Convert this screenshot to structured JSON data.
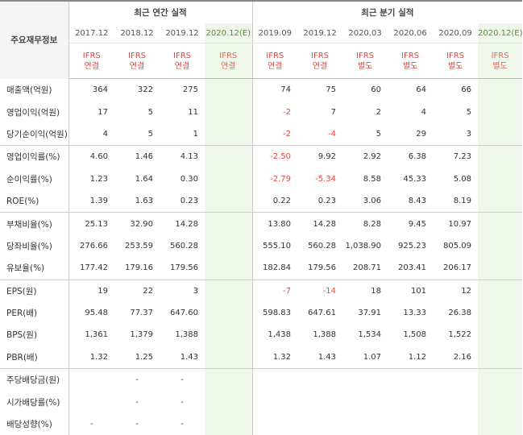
{
  "header": {
    "label_title": "주요재무정보",
    "annual_title": "최근 연간 실적",
    "quarterly_title": "최근 분기 실적"
  },
  "periods": [
    {
      "label": "2017.12",
      "type_line1": "IFRS",
      "type_line2": "연결",
      "estimate": false
    },
    {
      "label": "2018.12",
      "type_line1": "IFRS",
      "type_line2": "연결",
      "estimate": false
    },
    {
      "label": "2019.12",
      "type_line1": "IFRS",
      "type_line2": "연결",
      "estimate": false
    },
    {
      "label": "2020.12(E)",
      "type_line1": "IFRS",
      "type_line2": "연결",
      "estimate": true
    },
    {
      "label": "2019.09",
      "type_line1": "IFRS",
      "type_line2": "연결",
      "estimate": false
    },
    {
      "label": "2019.12",
      "type_line1": "IFRS",
      "type_line2": "연결",
      "estimate": false
    },
    {
      "label": "2020.03",
      "type_line1": "IFRS",
      "type_line2": "별도",
      "estimate": false
    },
    {
      "label": "2020.06",
      "type_line1": "IFRS",
      "type_line2": "별도",
      "estimate": false
    },
    {
      "label": "2020.09",
      "type_line1": "IFRS",
      "type_line2": "별도",
      "estimate": false
    },
    {
      "label": "2020.12(E)",
      "type_line1": "IFRS",
      "type_line2": "별도",
      "estimate": true
    }
  ],
  "rows": [
    {
      "label": "매출액(억원)",
      "values": [
        "364",
        "322",
        "275",
        "",
        "74",
        "75",
        "60",
        "64",
        "66",
        ""
      ]
    },
    {
      "label": "영업이익(억원)",
      "values": [
        "17",
        "5",
        "11",
        "",
        "-2",
        "7",
        "2",
        "4",
        "5",
        ""
      ]
    },
    {
      "label": "당기순이익(억원)",
      "values": [
        "4",
        "5",
        "1",
        "",
        "-2",
        "-4",
        "5",
        "29",
        "3",
        ""
      ],
      "group_end": true
    },
    {
      "label": "영업이익률(%)",
      "values": [
        "4.60",
        "1.46",
        "4.13",
        "",
        "-2.50",
        "9.92",
        "2.92",
        "6.38",
        "7.23",
        ""
      ]
    },
    {
      "label": "순이익률(%)",
      "values": [
        "1.23",
        "1.64",
        "0.30",
        "",
        "-2.79",
        "-5.34",
        "8.58",
        "45.33",
        "5.08",
        ""
      ]
    },
    {
      "label": "ROE(%)",
      "values": [
        "1.39",
        "1.63",
        "0.23",
        "",
        "0.22",
        "0.23",
        "3.06",
        "8.43",
        "8.19",
        ""
      ],
      "group_end": true
    },
    {
      "label": "부채비율(%)",
      "values": [
        "25.13",
        "32.90",
        "14.28",
        "",
        "13.80",
        "14.28",
        "8.28",
        "9.45",
        "10.97",
        ""
      ]
    },
    {
      "label": "당좌비율(%)",
      "values": [
        "276.66",
        "253.59",
        "560.28",
        "",
        "555.10",
        "560.28",
        "1,038.90",
        "925.23",
        "805.09",
        ""
      ]
    },
    {
      "label": "유보율(%)",
      "values": [
        "177.42",
        "179.16",
        "179.56",
        "",
        "182.84",
        "179.56",
        "208.71",
        "203.41",
        "206.17",
        ""
      ],
      "group_end": true
    },
    {
      "label": "EPS(원)",
      "values": [
        "19",
        "22",
        "3",
        "",
        "-7",
        "-14",
        "18",
        "101",
        "12",
        ""
      ]
    },
    {
      "label": "PER(배)",
      "values": [
        "95.48",
        "77.37",
        "647.60",
        "",
        "598.83",
        "647.61",
        "37.91",
        "13.33",
        "26.38",
        ""
      ]
    },
    {
      "label": "BPS(원)",
      "values": [
        "1,361",
        "1,379",
        "1,388",
        "",
        "1,438",
        "1,388",
        "1,534",
        "1,508",
        "1,522",
        ""
      ]
    },
    {
      "label": "PBR(배)",
      "values": [
        "1.32",
        "1.25",
        "1.43",
        "",
        "1.32",
        "1.43",
        "1.07",
        "1.12",
        "2.16",
        ""
      ],
      "group_end": true
    },
    {
      "label": "주당배당금(원)",
      "values": [
        "",
        "-",
        "-",
        "",
        "",
        "",
        "",
        "",
        "",
        ""
      ]
    },
    {
      "label": "시가배당률(%)",
      "values": [
        "",
        "-",
        "-",
        "",
        "",
        "",
        "",
        "",
        "",
        ""
      ]
    },
    {
      "label": "배당성향(%)",
      "values": [
        "-",
        "-",
        "-",
        "",
        "",
        "",
        "",
        "",
        "",
        ""
      ]
    }
  ],
  "colors": {
    "negative": "#e4473e",
    "estimate_bg": "#eef7e9",
    "estimate_text": "#5a8a3b",
    "type_text": "#e4473e"
  }
}
